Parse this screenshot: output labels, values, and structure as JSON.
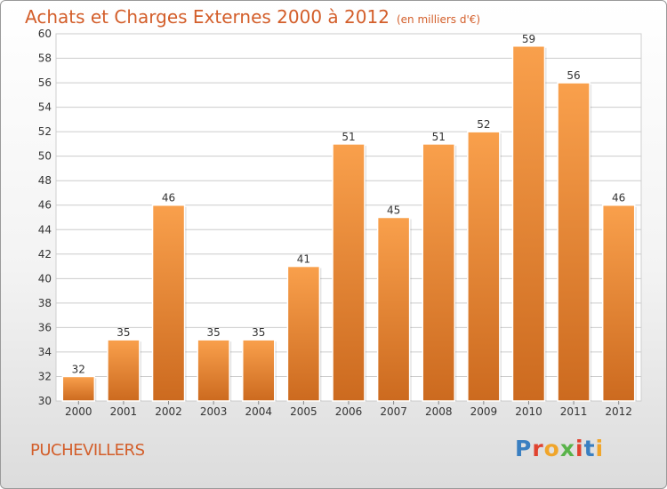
{
  "header": {
    "title": "Achats et Charges Externes 2000 à 2012",
    "subtitle": "(en milliers d'€)"
  },
  "footer": {
    "city": "PUCHEVILLERS",
    "logo": "Proxiti"
  },
  "colors": {
    "title": "#d35e2a",
    "bar_top": "#f9a04c",
    "bar_bottom": "#cc6a1f",
    "grid": "#cccccc"
  },
  "chart_data": {
    "type": "bar",
    "categories": [
      "2000",
      "2001",
      "2002",
      "2003",
      "2004",
      "2005",
      "2006",
      "2007",
      "2008",
      "2009",
      "2010",
      "2011",
      "2012"
    ],
    "values": [
      32,
      35,
      46,
      35,
      35,
      41,
      51,
      45,
      51,
      52,
      59,
      56,
      46
    ],
    "data_labels": [
      "32",
      "35",
      "46",
      "35",
      "35",
      "41",
      "51",
      "45",
      "51",
      "52",
      "59",
      "56",
      "46"
    ],
    "title": "Achats et Charges Externes 2000 à 2012",
    "xlabel": "",
    "ylabel": "",
    "ylim": [
      30,
      60
    ],
    "yticks": [
      30,
      32,
      34,
      36,
      38,
      40,
      42,
      44,
      46,
      48,
      50,
      52,
      54,
      56,
      58,
      60
    ],
    "grid": true,
    "legend": "none"
  }
}
